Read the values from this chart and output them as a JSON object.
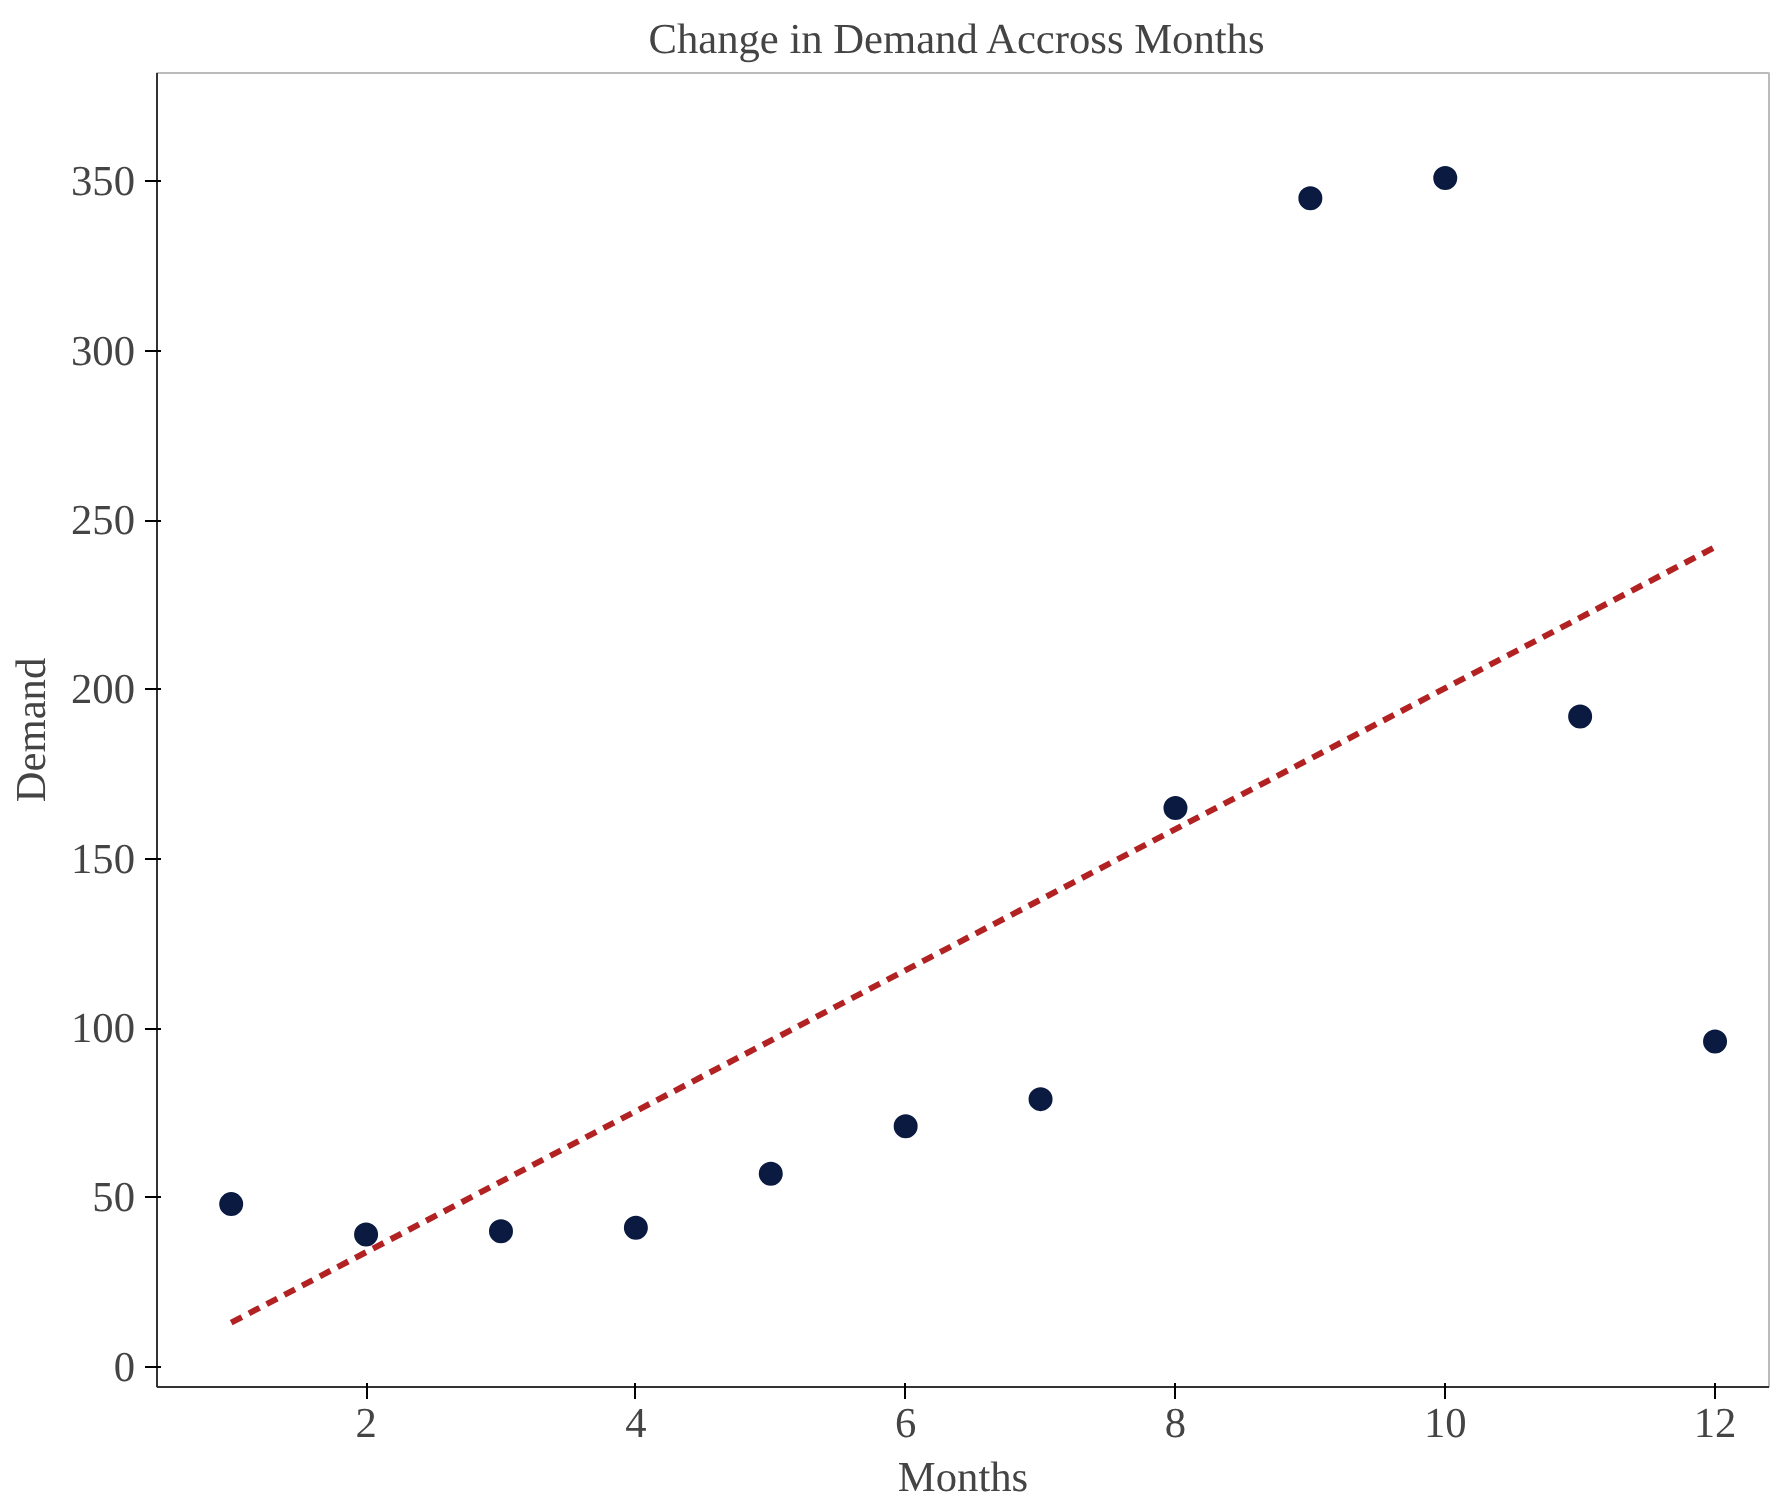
{
  "chart_data": {
    "type": "scatter",
    "title": "Change in Demand  Accross Months",
    "xlabel": "Months",
    "ylabel": "Demand",
    "x": [
      1,
      2,
      3,
      4,
      5,
      6,
      7,
      8,
      9,
      10,
      11,
      12
    ],
    "series": [
      {
        "color": "#0b1a40",
        "marker": "circle",
        "values": [
          48,
          39,
          40,
          41,
          57,
          71,
          79,
          165,
          345,
          351,
          192,
          96
        ]
      },
      {
        "type": "line",
        "color": "#b22222",
        "line_style": "dashed",
        "x": [
          1,
          12
        ],
        "values": [
          13,
          242
        ]
      }
    ],
    "xlim": [
      0.45,
      12.4
    ],
    "ylim": [
      -6,
      382
    ],
    "xticks": [
      2,
      4,
      6,
      8,
      10,
      12
    ],
    "yticks": [
      0,
      50,
      100,
      150,
      200,
      250,
      300,
      350
    ],
    "grid": false
  }
}
